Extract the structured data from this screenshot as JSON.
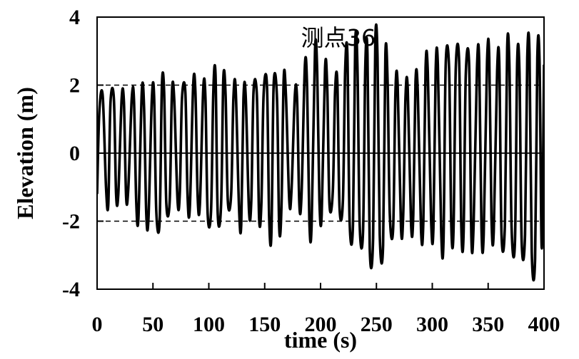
{
  "chart_data": {
    "type": "line",
    "title": "测点36",
    "xlabel": "time (s)",
    "ylabel": "Elevation (m)",
    "xlim": [
      0,
      400
    ],
    "ylim": [
      -4,
      4
    ],
    "xticks": [
      "0",
      "50",
      "100",
      "150",
      "200",
      "250",
      "300",
      "350",
      "400"
    ],
    "yticks": [
      "4",
      "2",
      "0",
      "-2",
      "-4"
    ],
    "reference_lines": [
      {
        "y": 2,
        "style": "dashed"
      },
      {
        "y": 0,
        "style": "solid"
      },
      {
        "y": -2,
        "style": "dashed"
      }
    ],
    "series": [
      {
        "color": "#000000",
        "points": [
          [
            0,
            -1.2
          ],
          [
            2,
            1.2
          ],
          [
            5,
            1.7
          ],
          [
            8,
            -1.0
          ],
          [
            10,
            -1.5
          ],
          [
            12,
            1.5
          ],
          [
            15,
            1.6
          ],
          [
            17,
            -1.2
          ],
          [
            19,
            -1.2
          ],
          [
            22,
            1.6
          ],
          [
            24,
            1.5
          ],
          [
            26,
            -1.3
          ],
          [
            28,
            -1.0
          ],
          [
            31,
            1.6
          ],
          [
            33,
            1.6
          ],
          [
            35,
            -1.4
          ],
          [
            37,
            -1.9
          ],
          [
            40,
            1.8
          ],
          [
            42,
            1.4
          ],
          [
            44,
            -1.8
          ],
          [
            46,
            -1.9
          ],
          [
            49,
            1.6
          ],
          [
            51,
            1.7
          ],
          [
            53,
            -1.7
          ],
          [
            56,
            -2.0
          ],
          [
            58,
            2.0
          ],
          [
            60,
            1.8
          ],
          [
            62,
            -1.5
          ],
          [
            65,
            -1.4
          ],
          [
            67,
            1.8
          ],
          [
            69,
            1.6
          ],
          [
            72,
            -1.4
          ],
          [
            74,
            -1.2
          ],
          [
            76,
            1.6
          ],
          [
            79,
            1.8
          ],
          [
            81,
            -1.3
          ],
          [
            83,
            -1.6
          ],
          [
            86,
            2.0
          ],
          [
            88,
            1.8
          ],
          [
            90,
            -1.3
          ],
          [
            92,
            -1.5
          ],
          [
            95,
            1.9
          ],
          [
            97,
            1.6
          ],
          [
            99,
            -1.8
          ],
          [
            102,
            -1.7
          ],
          [
            104,
            1.8
          ],
          [
            106,
            2.3
          ],
          [
            108,
            -1.8
          ],
          [
            111,
            -1.5
          ],
          [
            113,
            2.2
          ],
          [
            115,
            1.7
          ],
          [
            117,
            -1.4
          ],
          [
            120,
            -1.2
          ],
          [
            122,
            1.6
          ],
          [
            124,
            1.9
          ],
          [
            127,
            -1.6
          ],
          [
            129,
            -2.1
          ],
          [
            131,
            1.6
          ],
          [
            133,
            1.7
          ],
          [
            136,
            -1.7
          ],
          [
            138,
            -1.4
          ],
          [
            140,
            1.8
          ],
          [
            143,
            1.7
          ],
          [
            145,
            -1.9
          ],
          [
            147,
            -1.5
          ],
          [
            149,
            1.7
          ],
          [
            152,
            2.0
          ],
          [
            154,
            -1.9
          ],
          [
            156,
            -2.4
          ],
          [
            158,
            2.0
          ],
          [
            161,
            1.6
          ],
          [
            163,
            -2.2
          ],
          [
            165,
            -1.6
          ],
          [
            167,
            2.2
          ],
          [
            169,
            1.7
          ],
          [
            172,
            -1.4
          ],
          [
            174,
            -1.1
          ],
          [
            177,
            1.7
          ],
          [
            179,
            1.6
          ],
          [
            181,
            -1.5
          ],
          [
            183,
            -1.2
          ],
          [
            186,
            2.6
          ],
          [
            188,
            1.9
          ],
          [
            190,
            -2.0
          ],
          [
            192,
            -2.1
          ],
          [
            195,
            3.0
          ],
          [
            197,
            2.4
          ],
          [
            199,
            -1.4
          ],
          [
            201,
            -1.8
          ],
          [
            204,
            2.5
          ],
          [
            206,
            1.9
          ],
          [
            208,
            -1.5
          ],
          [
            211,
            -1.1
          ],
          [
            213,
            1.8
          ],
          [
            215,
            2.1
          ],
          [
            217,
            -1.6
          ],
          [
            220,
            -1.4
          ],
          [
            222,
            2.4
          ],
          [
            224,
            2.9
          ],
          [
            226,
            -2.0
          ],
          [
            229,
            -2.1
          ],
          [
            231,
            3.2
          ],
          [
            233,
            2.6
          ],
          [
            235,
            -2.1
          ],
          [
            238,
            -2.3
          ],
          [
            240,
            2.5
          ],
          [
            242,
            2.9
          ],
          [
            244,
            -2.8
          ],
          [
            247,
            -2.5
          ],
          [
            249,
            3.3
          ],
          [
            251,
            2.8
          ],
          [
            253,
            -2.4
          ],
          [
            256,
            -2.7
          ],
          [
            258,
            2.9
          ],
          [
            260,
            2.1
          ],
          [
            262,
            -1.8
          ],
          [
            265,
            -2.2
          ],
          [
            267,
            1.8
          ],
          [
            269,
            2.0
          ],
          [
            272,
            -2.2
          ],
          [
            274,
            -1.8
          ],
          [
            276,
            1.6
          ],
          [
            278,
            1.9
          ],
          [
            281,
            -2.1
          ],
          [
            283,
            -1.8
          ],
          [
            285,
            2.1
          ],
          [
            287,
            1.8
          ],
          [
            290,
            -2.3
          ],
          [
            292,
            -2.0
          ],
          [
            294,
            2.5
          ],
          [
            296,
            2.4
          ],
          [
            299,
            -2.0
          ],
          [
            301,
            -2.2
          ],
          [
            303,
            2.4
          ],
          [
            305,
            2.6
          ],
          [
            308,
            -2.3
          ],
          [
            310,
            -2.6
          ],
          [
            312,
            2.6
          ],
          [
            315,
            2.5
          ],
          [
            317,
            -2.1
          ],
          [
            319,
            -2.3
          ],
          [
            321,
            2.5
          ],
          [
            324,
            2.7
          ],
          [
            326,
            -2.2
          ],
          [
            328,
            -2.4
          ],
          [
            330,
            2.3
          ],
          [
            333,
            2.6
          ],
          [
            335,
            -2.5
          ],
          [
            337,
            -2.1
          ],
          [
            340,
            2.5
          ],
          [
            342,
            2.7
          ],
          [
            344,
            -2.2
          ],
          [
            346,
            -2.4
          ],
          [
            349,
            2.7
          ],
          [
            351,
            2.8
          ],
          [
            353,
            -1.9
          ],
          [
            355,
            -2.3
          ],
          [
            358,
            2.4
          ],
          [
            360,
            2.6
          ],
          [
            362,
            -2.4
          ],
          [
            365,
            -2.1
          ],
          [
            367,
            3.1
          ],
          [
            369,
            2.6
          ],
          [
            371,
            -2.2
          ],
          [
            374,
            -2.6
          ],
          [
            376,
            2.7
          ],
          [
            378,
            2.4
          ],
          [
            380,
            -2.6
          ],
          [
            383,
            -2.4
          ],
          [
            385,
            2.8
          ],
          [
            387,
            2.9
          ],
          [
            389,
            -2.9
          ],
          [
            392,
            -3.1
          ],
          [
            394,
            2.8
          ],
          [
            396,
            2.7
          ],
          [
            398,
            -2.8
          ],
          [
            400,
            2.6
          ]
        ]
      }
    ]
  }
}
